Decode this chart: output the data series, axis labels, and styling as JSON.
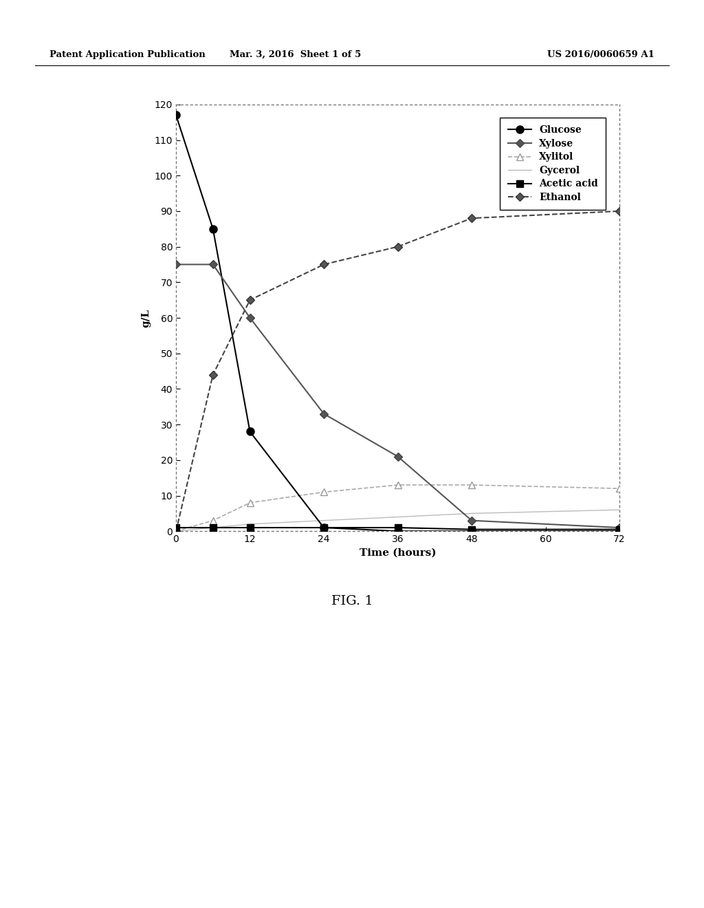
{
  "time": [
    0,
    6,
    12,
    24,
    36,
    48,
    72
  ],
  "glucose": [
    117,
    85,
    28,
    1,
    0,
    0,
    0
  ],
  "xylose": [
    75,
    75,
    60,
    33,
    21,
    3,
    1
  ],
  "xylitol": [
    0,
    3,
    8,
    11,
    13,
    13,
    12
  ],
  "gycerol": [
    0,
    1,
    2,
    3,
    4,
    5,
    6
  ],
  "acetic_acid": [
    1,
    1,
    1,
    1,
    1,
    0.5,
    0.5
  ],
  "ethanol": [
    0,
    44,
    65,
    75,
    80,
    88,
    90
  ],
  "ylim": [
    0,
    120
  ],
  "xlim": [
    0,
    72
  ],
  "yticks": [
    0,
    10,
    20,
    30,
    40,
    50,
    60,
    70,
    80,
    90,
    100,
    110,
    120
  ],
  "xticks": [
    0,
    12,
    24,
    36,
    48,
    60,
    72
  ],
  "ylabel": "g/L",
  "xlabel": "Time (hours)",
  "fig_title": "FIG. 1",
  "header_left": "Patent Application Publication",
  "header_mid": "Mar. 3, 2016  Sheet 1 of 5",
  "header_right": "US 2016/0060659 A1",
  "legend_labels": [
    "Glucose",
    "Xylose",
    "Xylitol",
    "Gycerol",
    "Acetic acid",
    "Ethanol"
  ],
  "background_color": "#ffffff",
  "plot_bg": "#ffffff"
}
